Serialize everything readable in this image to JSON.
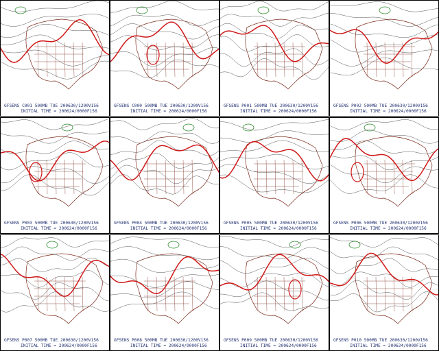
{
  "panels": [
    {
      "line1": "GFSENS C001 500MB TUE 200630/1200V156",
      "line2": "INITIAL TIME = 200624/0000F156"
    },
    {
      "line1": "GFSENS C000 500MB TUE 200630/1200V156",
      "line2": "INITIAL TIME = 200624/0000F156"
    },
    {
      "line1": "GFSENS P001 500MB TUE 200630/1200V156",
      "line2": "INITIAL TIME = 200624/0000F156"
    },
    {
      "line1": "GFSENS P002 500MB TUE 200630/1200V156",
      "line2": "INITIAL TIME = 200624/0000F156"
    },
    {
      "line1": "GFSENS P003 500MB TUE 200630/1200V156",
      "line2": "INITIAL TIME = 200624/0000F156"
    },
    {
      "line1": "GFSENS P004 500MB TUE 200630/1200V156",
      "line2": "INITIAL TIME = 200624/0000F156"
    },
    {
      "line1": "GFSENS P005 500MB TUE 200630/1200V156",
      "line2": "INITIAL TIME = 200624/0000F156"
    },
    {
      "line1": "GFSENS P006 500MB TUE 200630/1200V156",
      "line2": "INITIAL TIME = 200624/0000F156"
    },
    {
      "line1": "GFSENS P007 500MB TUE 200630/1200V156",
      "line2": "INITIAL TIME = 200624/0000F156"
    },
    {
      "line1": "GFSENS P008 500MB TUE 200630/1200V156",
      "line2": "INITIAL TIME = 200624/0000F156"
    },
    {
      "line1": "GFSENS P009 500MB TUE 200630/1200V156",
      "line2": "INITIAL TIME = 200624/0000F156"
    },
    {
      "line1": "GFSENS P010 500MB TUE 200630/1200V156",
      "line2": "INITIAL TIME = 200624/0000F156"
    }
  ]
}
